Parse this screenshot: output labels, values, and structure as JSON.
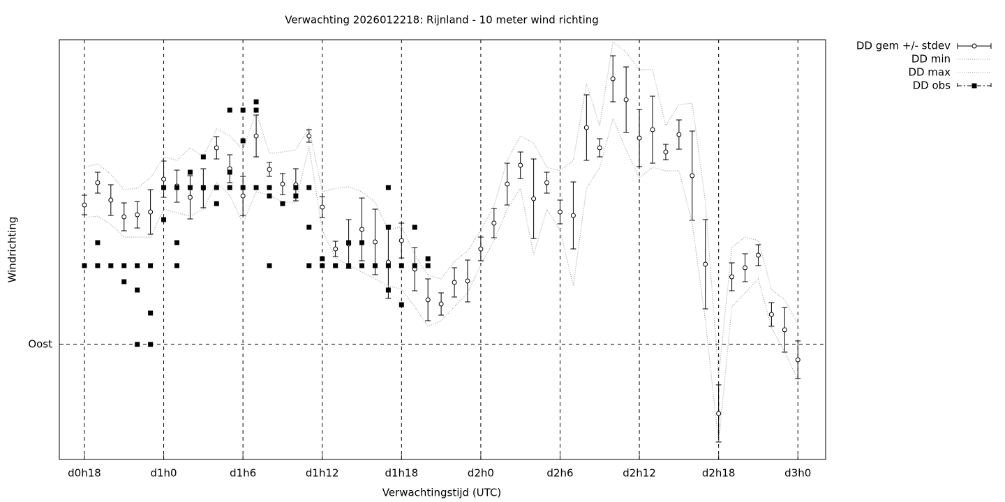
{
  "chart_data": {
    "type": "errorbar",
    "title": "Verwachting 2026012218: Rijnland - 10 meter wind richting",
    "xlabel": "Verwachtingstijd (UTC)",
    "ylabel": "Windrichting",
    "xlim": [
      16.1,
      74.1
    ],
    "ylim": [
      40.5,
      221.1
    ],
    "xticks": [
      {
        "value": 18,
        "label": "d0h18"
      },
      {
        "value": 24,
        "label": "d1h0"
      },
      {
        "value": 30,
        "label": "d1h6"
      },
      {
        "value": 36,
        "label": "d1h12"
      },
      {
        "value": 42,
        "label": "d1h18"
      },
      {
        "value": 48,
        "label": "d2h0"
      },
      {
        "value": 54,
        "label": "d2h6"
      },
      {
        "value": 60,
        "label": "d2h12"
      },
      {
        "value": 66,
        "label": "d2h18"
      },
      {
        "value": 72,
        "label": "d3h0"
      }
    ],
    "yticks": [
      {
        "value": 90,
        "label": "Oost"
      }
    ],
    "grid": true,
    "legend": "outside-top-right",
    "x": [
      18,
      19,
      20,
      21,
      22,
      23,
      24,
      25,
      26,
      27,
      28,
      29,
      30,
      31,
      32,
      33,
      34,
      35,
      36,
      37,
      38,
      39,
      40,
      41,
      42,
      43,
      44,
      45,
      46,
      47,
      48,
      49,
      50,
      51,
      52,
      53,
      54,
      55,
      56,
      57,
      58,
      59,
      60,
      61,
      62,
      63,
      64,
      65,
      66,
      67,
      68,
      69,
      70,
      71,
      72
    ],
    "series": [
      {
        "name": "DD gem +/- stdev",
        "color": "#000000",
        "style": "errorbar",
        "values": [
          150.0,
          159.6,
          152.1,
          144.9,
          145.8,
          147.0,
          161.1,
          158.1,
          153.3,
          157.2,
          174.6,
          165.6,
          153.9,
          179.7,
          165.3,
          159.0,
          158.7,
          179.7,
          149.1,
          131.1,
          133.2,
          139.5,
          134.1,
          125.4,
          134.7,
          122.4,
          109.2,
          107.4,
          116.7,
          117.3,
          131.1,
          142.2,
          159.0,
          167.1,
          152.7,
          159.6,
          147.0,
          145.5,
          183.3,
          174.6,
          204.3,
          195.3,
          178.8,
          182.4,
          172.8,
          180.3,
          162.6,
          124.5,
          60.3,
          119.1,
          123.0,
          128.4,
          102.9,
          96.3,
          83.4
        ],
        "errors": [
          4.2,
          4.5,
          6.6,
          6.0,
          5.7,
          9.6,
          7.8,
          6.9,
          9.3,
          8.4,
          4.8,
          6.0,
          8.4,
          9.0,
          3.0,
          4.5,
          6.9,
          2.7,
          4.5,
          3.3,
          10.5,
          13.5,
          14.1,
          15.6,
          7.5,
          9.3,
          9.0,
          4.8,
          6.3,
          9.0,
          5.1,
          6.3,
          9.0,
          5.7,
          17.1,
          4.5,
          5.1,
          14.4,
          14.1,
          3.9,
          9.9,
          14.1,
          12.3,
          14.4,
          3.3,
          6.3,
          19.2,
          19.2,
          12.3,
          6.0,
          6.0,
          4.5,
          5.1,
          9.6,
          8.1
        ]
      },
      {
        "name": "DD min",
        "color": "#a0a0a0",
        "style": "dotted",
        "values": [
          144.6,
          145.2,
          141.6,
          136.2,
          136.2,
          136.2,
          148.2,
          146.7,
          145.2,
          148.2,
          159.6,
          154.2,
          142.2,
          155.7,
          154.2,
          151.2,
          151.2,
          175.2,
          139.2,
          127.2,
          124.2,
          121.2,
          118.2,
          115.2,
          113.7,
          106.2,
          97.8,
          100.2,
          106.2,
          112.2,
          124.2,
          134.7,
          148.2,
          157.2,
          128.7,
          148.2,
          139.2,
          115.2,
          157.2,
          166.2,
          187.2,
          173.7,
          161.7,
          166.2,
          164.7,
          164.7,
          142.2,
          100.2,
          47.7,
          106.2,
          112.2,
          118.2,
          97.2,
          86.7,
          74.7
        ]
      },
      {
        "name": "DD max",
        "color": "#a0a0a0",
        "style": "dotted",
        "values": [
          166.2,
          167.7,
          163.2,
          156.6,
          157.2,
          161.7,
          170.7,
          169.2,
          174.6,
          170.7,
          182.7,
          179.7,
          173.7,
          190.2,
          172.2,
          172.8,
          173.7,
          183.3,
          155.7,
          157.2,
          157.8,
          155.7,
          151.2,
          139.2,
          140.7,
          128.7,
          119.7,
          118.2,
          125.7,
          130.2,
          139.2,
          149.7,
          169.2,
          179.7,
          176.7,
          166.2,
          164.7,
          169.2,
          202.2,
          184.2,
          220.2,
          215.7,
          208.2,
          208.2,
          184.2,
          193.2,
          193.8,
          151.2,
          76.2,
          131.7,
          136.2,
          134.7,
          113.7,
          109.2,
          98.7
        ]
      },
      {
        "name": "DD obs",
        "color": "#000000",
        "style": "squares",
        "x": [
          18,
          19,
          19,
          20,
          21,
          21,
          22,
          22,
          22,
          23,
          23,
          23,
          24,
          24,
          25,
          25,
          25,
          26,
          26,
          27,
          27,
          28,
          28,
          29,
          29,
          29,
          30,
          30,
          30,
          31,
          31,
          31,
          32,
          32,
          32,
          33,
          34,
          34,
          35,
          35,
          35,
          36,
          36,
          37,
          38,
          38,
          39,
          39,
          40,
          41,
          41,
          41,
          41,
          42,
          42,
          43,
          43,
          44,
          44
        ],
        "values": [
          123.9,
          133.8,
          123.9,
          123.9,
          123.9,
          117.0,
          123.9,
          113.4,
          90,
          123.9,
          103.5,
          90,
          157.5,
          143.7,
          157.5,
          133.8,
          123.9,
          164.1,
          157.5,
          170.7,
          157.5,
          157.5,
          150.6,
          190.8,
          164.1,
          157.5,
          190.8,
          177.6,
          157.5,
          194.4,
          190.8,
          157.5,
          157.5,
          153.9,
          123.9,
          150.6,
          157.5,
          153.9,
          157.5,
          140.4,
          123.9,
          126.9,
          123.9,
          123.9,
          133.8,
          123.9,
          133.8,
          123.9,
          123.9,
          157.5,
          140.4,
          123.9,
          113.4,
          123.9,
          107.1,
          140.4,
          123.9,
          126.9,
          123.9
        ]
      }
    ]
  }
}
